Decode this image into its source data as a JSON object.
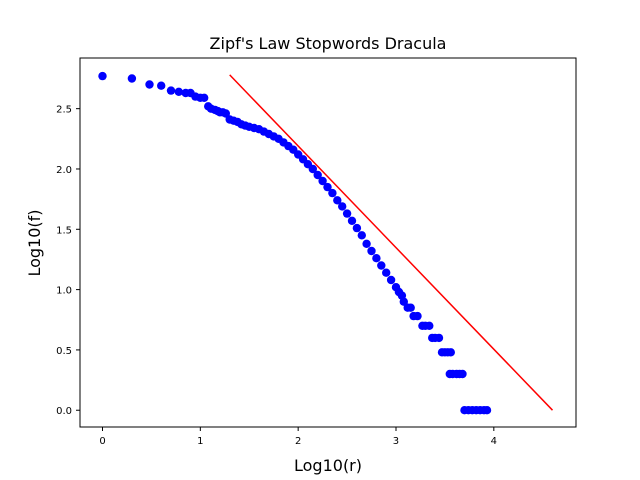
{
  "chart_data": {
    "type": "scatter",
    "title": "Zipf's Law Stopwords Dracula",
    "xlabel": "Log10(r)",
    "ylabel": "Log10(f)",
    "xlim": [
      -0.23,
      4.84
    ],
    "ylim": [
      -0.139,
      2.92
    ],
    "xticks": [
      0,
      1,
      2,
      3,
      4
    ],
    "xtick_labels": [
      "0",
      "1",
      "2",
      "3",
      "4"
    ],
    "yticks": [
      0.0,
      0.5,
      1.0,
      1.5,
      2.0,
      2.5
    ],
    "ytick_labels": [
      "0.0",
      "0.5",
      "1.0",
      "1.5",
      "2.0",
      "2.5"
    ],
    "grid": false,
    "legend": "none",
    "series": [
      {
        "marker": "circle",
        "color": "#0000ff",
        "points": [
          [
            0.0,
            2.77
          ],
          [
            0.3,
            2.75
          ],
          [
            0.48,
            2.7
          ],
          [
            0.6,
            2.69
          ],
          [
            0.7,
            2.65
          ],
          [
            0.78,
            2.64
          ],
          [
            0.85,
            2.63
          ],
          [
            0.9,
            2.63
          ],
          [
            0.95,
            2.6
          ],
          [
            1.0,
            2.59
          ],
          [
            1.04,
            2.59
          ],
          [
            1.08,
            2.52
          ],
          [
            1.11,
            2.5
          ],
          [
            1.15,
            2.49
          ],
          [
            1.18,
            2.48
          ],
          [
            1.2,
            2.47
          ],
          [
            1.23,
            2.47
          ],
          [
            1.26,
            2.46
          ],
          [
            1.3,
            2.41
          ],
          [
            1.34,
            2.4
          ],
          [
            1.38,
            2.39
          ],
          [
            1.42,
            2.37
          ],
          [
            1.46,
            2.36
          ],
          [
            1.5,
            2.35
          ],
          [
            1.55,
            2.34
          ],
          [
            1.6,
            2.33
          ],
          [
            1.65,
            2.31
          ],
          [
            1.7,
            2.29
          ],
          [
            1.75,
            2.27
          ],
          [
            1.8,
            2.25
          ],
          [
            1.85,
            2.22
          ],
          [
            1.9,
            2.19
          ],
          [
            1.95,
            2.16
          ],
          [
            2.0,
            2.12
          ],
          [
            2.05,
            2.08
          ],
          [
            2.1,
            2.04
          ],
          [
            2.15,
            2.0
          ],
          [
            2.2,
            1.95
          ],
          [
            2.25,
            1.9
          ],
          [
            2.3,
            1.85
          ],
          [
            2.35,
            1.8
          ],
          [
            2.4,
            1.74
          ],
          [
            2.45,
            1.69
          ],
          [
            2.5,
            1.63
          ],
          [
            2.55,
            1.57
          ],
          [
            2.6,
            1.51
          ],
          [
            2.65,
            1.45
          ],
          [
            2.7,
            1.38
          ],
          [
            2.75,
            1.32
          ],
          [
            2.8,
            1.26
          ],
          [
            2.85,
            1.2
          ],
          [
            2.9,
            1.14
          ],
          [
            2.95,
            1.08
          ],
          [
            3.0,
            1.02
          ],
          [
            3.03,
            0.98
          ],
          [
            3.06,
            0.95
          ],
          [
            3.08,
            0.9
          ],
          [
            3.12,
            0.85
          ],
          [
            3.15,
            0.85
          ],
          [
            3.18,
            0.78
          ],
          [
            3.22,
            0.78
          ],
          [
            3.27,
            0.7
          ],
          [
            3.3,
            0.7
          ],
          [
            3.34,
            0.7
          ],
          [
            3.37,
            0.6
          ],
          [
            3.4,
            0.6
          ],
          [
            3.44,
            0.6
          ],
          [
            3.47,
            0.48
          ],
          [
            3.5,
            0.48
          ],
          [
            3.53,
            0.48
          ],
          [
            3.56,
            0.48
          ],
          [
            3.55,
            0.3
          ],
          [
            3.58,
            0.3
          ],
          [
            3.62,
            0.3
          ],
          [
            3.65,
            0.3
          ],
          [
            3.68,
            0.3
          ],
          [
            3.7,
            0.0
          ],
          [
            3.74,
            0.0
          ],
          [
            3.78,
            0.0
          ],
          [
            3.82,
            0.0
          ],
          [
            3.86,
            0.0
          ],
          [
            3.9,
            0.0
          ],
          [
            3.93,
            0.0
          ]
        ]
      },
      {
        "type": "line",
        "color": "#ff0000",
        "points": [
          [
            1.3,
            2.78
          ],
          [
            4.6,
            0.0
          ]
        ]
      }
    ]
  }
}
